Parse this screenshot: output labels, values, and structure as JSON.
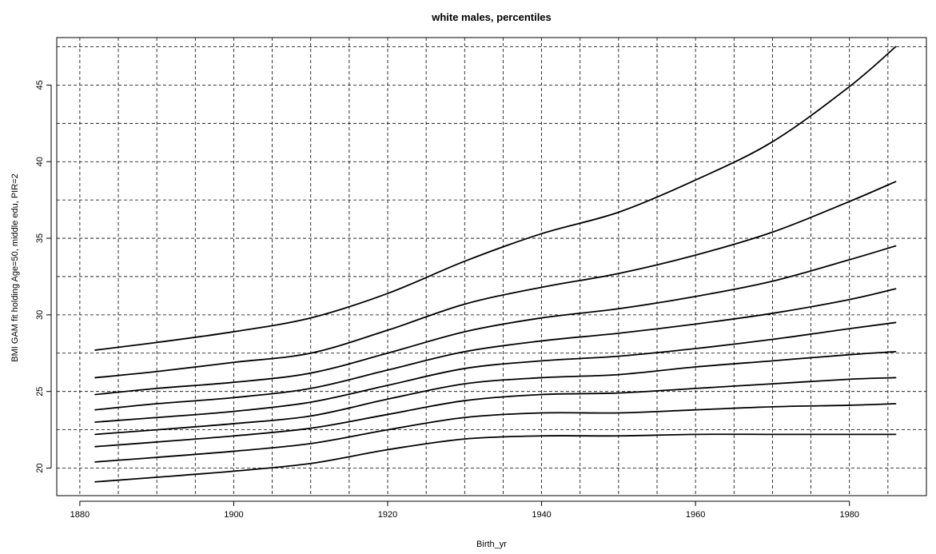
{
  "chart_data": {
    "type": "line",
    "title": "white males, percentiles",
    "xlabel": "Birth_yr",
    "ylabel": "BMI GAM fit holding Age=50, middle edu, PIR=2",
    "xlim": [
      1877,
      1990
    ],
    "ylim": [
      18.2,
      48.1
    ],
    "x_ticks": [
      1880,
      1900,
      1920,
      1940,
      1960,
      1980
    ],
    "y_ticks": [
      20,
      25,
      30,
      35,
      40,
      45
    ],
    "x_grid": [
      1880,
      1885,
      1890,
      1895,
      1900,
      1905,
      1910,
      1915,
      1920,
      1925,
      1930,
      1935,
      1940,
      1945,
      1950,
      1955,
      1960,
      1965,
      1970,
      1975,
      1980,
      1985
    ],
    "y_grid": [
      20,
      22.5,
      25,
      27.5,
      30,
      32.5,
      35,
      37.5,
      40,
      42.5,
      45,
      47.5
    ],
    "grid": true,
    "legend": "none",
    "x": [
      1882,
      1890,
      1900,
      1910,
      1920,
      1930,
      1940,
      1950,
      1960,
      1970,
      1980,
      1986
    ],
    "series": [
      {
        "values": [
          19.1,
          19.4,
          19.8,
          20.3,
          21.2,
          21.9,
          22.1,
          22.1,
          22.2,
          22.2,
          22.2,
          22.2
        ]
      },
      {
        "values": [
          20.4,
          20.7,
          21.1,
          21.6,
          22.5,
          23.3,
          23.6,
          23.6,
          23.8,
          24.0,
          24.1,
          24.2
        ]
      },
      {
        "values": [
          21.4,
          21.7,
          22.1,
          22.6,
          23.5,
          24.4,
          24.8,
          24.9,
          25.2,
          25.5,
          25.8,
          25.9
        ]
      },
      {
        "values": [
          22.2,
          22.5,
          22.9,
          23.4,
          24.5,
          25.5,
          25.9,
          26.1,
          26.6,
          27.0,
          27.4,
          27.6
        ]
      },
      {
        "values": [
          23.0,
          23.3,
          23.7,
          24.3,
          25.4,
          26.5,
          27.0,
          27.3,
          27.8,
          28.4,
          29.1,
          29.5
        ]
      },
      {
        "values": [
          23.8,
          24.2,
          24.6,
          25.2,
          26.4,
          27.6,
          28.3,
          28.8,
          29.4,
          30.1,
          31.0,
          31.7
        ]
      },
      {
        "values": [
          24.8,
          25.2,
          25.6,
          26.2,
          27.5,
          28.9,
          29.8,
          30.4,
          31.2,
          32.2,
          33.6,
          34.5
        ]
      },
      {
        "values": [
          25.9,
          26.3,
          26.9,
          27.5,
          29.0,
          30.7,
          31.8,
          32.7,
          33.9,
          35.4,
          37.4,
          38.7
        ]
      },
      {
        "values": [
          27.7,
          28.2,
          28.9,
          29.8,
          31.4,
          33.5,
          35.3,
          36.7,
          38.8,
          41.3,
          44.9,
          47.5
        ]
      }
    ]
  }
}
